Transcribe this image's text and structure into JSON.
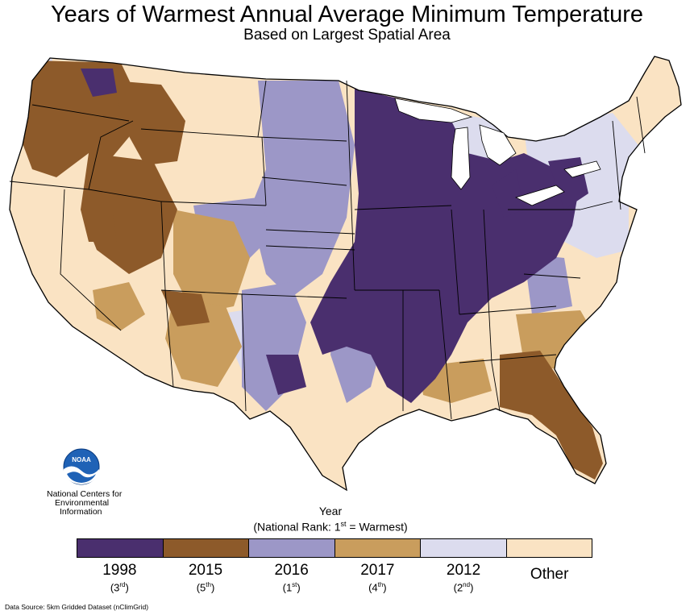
{
  "title": "Years of Warmest Annual Average Minimum Temperature",
  "subtitle": "Based on Largest Spatial Area",
  "org": {
    "logo_text": "NOAA",
    "line1": "National Centers for",
    "line2": "Environmental",
    "line3": "Information"
  },
  "legend": {
    "title": "Year",
    "subtitle_prefix": "(National Rank: 1",
    "subtitle_sup": "st",
    "subtitle_suffix": " = Warmest)",
    "items": [
      {
        "year": "1998",
        "rank_num": "3",
        "rank_sup": "rd",
        "color": "#4a2f6e"
      },
      {
        "year": "2015",
        "rank_num": "5",
        "rank_sup": "th",
        "color": "#8d5a2a"
      },
      {
        "year": "2016",
        "rank_num": "1",
        "rank_sup": "st",
        "color": "#9c97c7"
      },
      {
        "year": "2017",
        "rank_num": "4",
        "rank_sup": "th",
        "color": "#c99d5d"
      },
      {
        "year": "2012",
        "rank_num": "2",
        "rank_sup": "nd",
        "color": "#dcdcee"
      },
      {
        "year": "Other",
        "rank_num": "",
        "rank_sup": "",
        "color": "#fae3c3"
      }
    ]
  },
  "source": "Data Source: 5km Gridded Dataset (nClimGrid)",
  "colors": {
    "ocean": "#ffffff",
    "border": "#000000",
    "noaa_blue": "#1f62b6"
  }
}
